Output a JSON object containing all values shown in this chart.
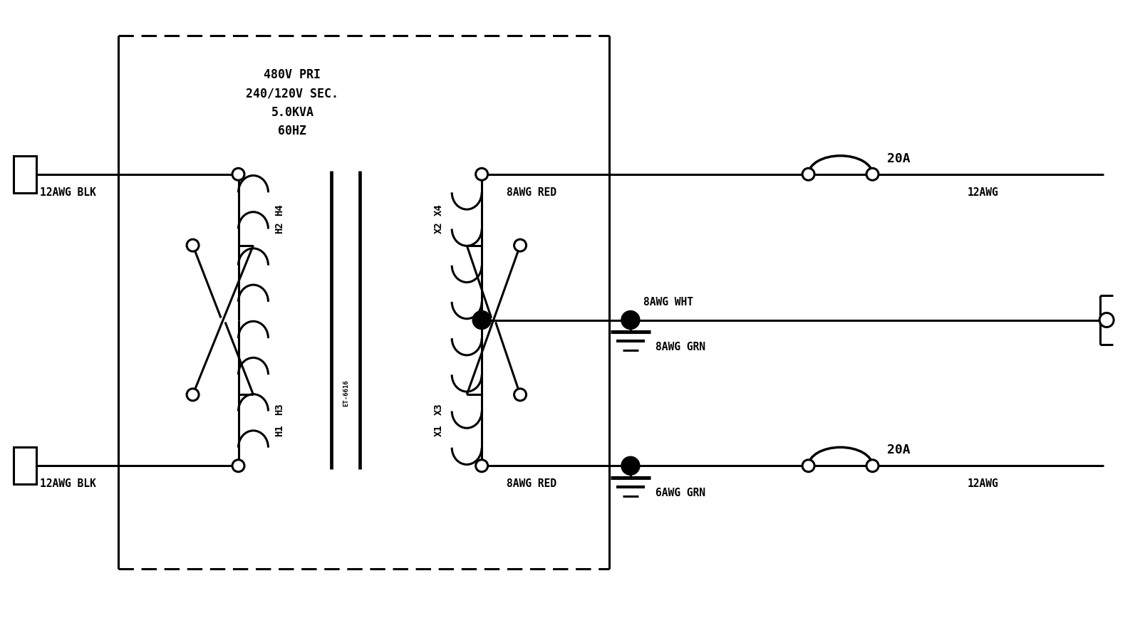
{
  "bg_color": "#ffffff",
  "line_color": "#000000",
  "lw": 2.2,
  "title_text": "480V PRI\n240/120V SEC.\n5.0KVA\n60HZ",
  "transformer_label": "ET-6616",
  "labels": {
    "top_left_wire": "12AWG BLK",
    "bot_left_wire": "12AWG BLK",
    "neutral_wire": "8AWG WHT",
    "neutral_gnd": "8AWG GRN",
    "top_hot_wire": "8AWG RED",
    "bot_hot_wire": "8AWG RED",
    "bot_gnd": "6AWG GRN",
    "top_breaker": "20A",
    "bot_breaker": "20A",
    "top_out_label": "12AWG",
    "bot_out_label": "12AWG",
    "h4_label": "H4",
    "h2_label": "H2",
    "h3_label": "H3",
    "h1_label": "H1",
    "x4_label": "X4",
    "x2_label": "X2",
    "x3_label": "X3",
    "x1_label": "X1"
  }
}
